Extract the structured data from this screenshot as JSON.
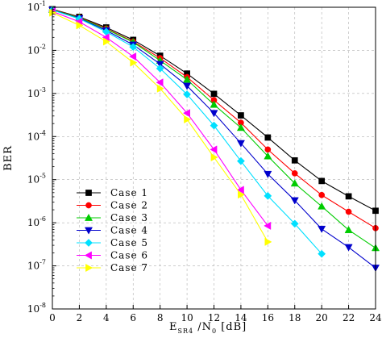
{
  "chart_data": {
    "type": "line",
    "title": "",
    "xlabel": {
      "main": "E",
      "sub1": "SR4",
      "mid": "/N",
      "sub2": "0",
      "unit": "[dB]"
    },
    "ylabel": "BER",
    "yscale": "log",
    "xlim": [
      0,
      24
    ],
    "ylim": [
      1e-08,
      0.1
    ],
    "x_ticks": [
      0,
      2,
      4,
      6,
      8,
      10,
      12,
      14,
      16,
      18,
      20,
      22,
      24
    ],
    "y_ticks": [
      {
        "value": 0.1,
        "base": "10",
        "exp": "-1"
      },
      {
        "value": 0.01,
        "base": "10",
        "exp": "-2"
      },
      {
        "value": 0.001,
        "base": "10",
        "exp": "-3"
      },
      {
        "value": 0.0001,
        "base": "10",
        "exp": "-4"
      },
      {
        "value": 1e-05,
        "base": "10",
        "exp": "-5"
      },
      {
        "value": 1e-06,
        "base": "10",
        "exp": "-6"
      },
      {
        "value": 1e-07,
        "base": "10",
        "exp": "-7"
      },
      {
        "value": 1e-08,
        "base": "10",
        "exp": "-8"
      }
    ],
    "grid": "dashed",
    "legend_position": "bottom-left",
    "series": [
      {
        "name": "Case 1",
        "color": "#000000",
        "marker": "square",
        "x": [
          0,
          2,
          4,
          6,
          8,
          10,
          12,
          14,
          16,
          18,
          20,
          22,
          24
        ],
        "y": [
          0.09,
          0.06,
          0.034,
          0.0175,
          0.0075,
          0.0029,
          0.00098,
          0.00031,
          9.5e-05,
          2.8e-05,
          9.3e-06,
          4.1e-06,
          1.9e-06
        ]
      },
      {
        "name": "Case 2",
        "color": "#ff0000",
        "marker": "circle",
        "x": [
          0,
          2,
          4,
          6,
          8,
          10,
          12,
          14,
          16,
          18,
          20,
          22,
          24
        ],
        "y": [
          0.089,
          0.058,
          0.032,
          0.016,
          0.0066,
          0.0024,
          0.0007,
          0.00021,
          5e-05,
          1.4e-05,
          4.4e-06,
          1.8e-06,
          7.5e-07
        ]
      },
      {
        "name": "Case 3",
        "color": "#00cc00",
        "marker": "triangle-up",
        "x": [
          0,
          2,
          4,
          6,
          8,
          10,
          12,
          14,
          16,
          18,
          20,
          22,
          24
        ],
        "y": [
          0.088,
          0.057,
          0.031,
          0.0155,
          0.0058,
          0.0021,
          0.00055,
          0.00016,
          3.5e-05,
          8.2e-06,
          2.4e-06,
          6.8e-07,
          2.6e-07
        ]
      },
      {
        "name": "Case 4",
        "color": "#0000cc",
        "marker": "triangle-down",
        "x": [
          0,
          2,
          4,
          6,
          8,
          10,
          12,
          14,
          16,
          18,
          20,
          22,
          24
        ],
        "y": [
          0.087,
          0.055,
          0.029,
          0.0135,
          0.0048,
          0.0015,
          0.00035,
          7e-05,
          1.35e-05,
          3.3e-06,
          7.2e-07,
          2.7e-07,
          9e-08
        ]
      },
      {
        "name": "Case 5",
        "color": "#00e0ff",
        "marker": "diamond",
        "x": [
          0,
          2,
          4,
          6,
          8,
          10,
          12,
          14,
          16,
          18,
          20
        ],
        "y": [
          0.086,
          0.054,
          0.027,
          0.012,
          0.0038,
          0.00095,
          0.00018,
          2.7e-05,
          4.2e-06,
          9.5e-07,
          1.9e-07
        ]
      },
      {
        "name": "Case 6",
        "color": "#ff00ff",
        "marker": "triangle-left",
        "x": [
          0,
          2,
          4,
          6,
          8,
          10,
          12,
          14,
          16
        ],
        "y": [
          0.08,
          0.046,
          0.02,
          0.0072,
          0.0018,
          0.00035,
          5e-05,
          5.8e-06,
          8.5e-07
        ]
      },
      {
        "name": "Case 7",
        "color": "#ffff00",
        "marker": "triangle-right",
        "x": [
          0,
          2,
          4,
          6,
          8,
          10,
          12,
          14,
          16
        ],
        "y": [
          0.075,
          0.038,
          0.016,
          0.0052,
          0.0013,
          0.00025,
          3.3e-05,
          4.5e-06,
          3.6e-07
        ]
      }
    ]
  }
}
